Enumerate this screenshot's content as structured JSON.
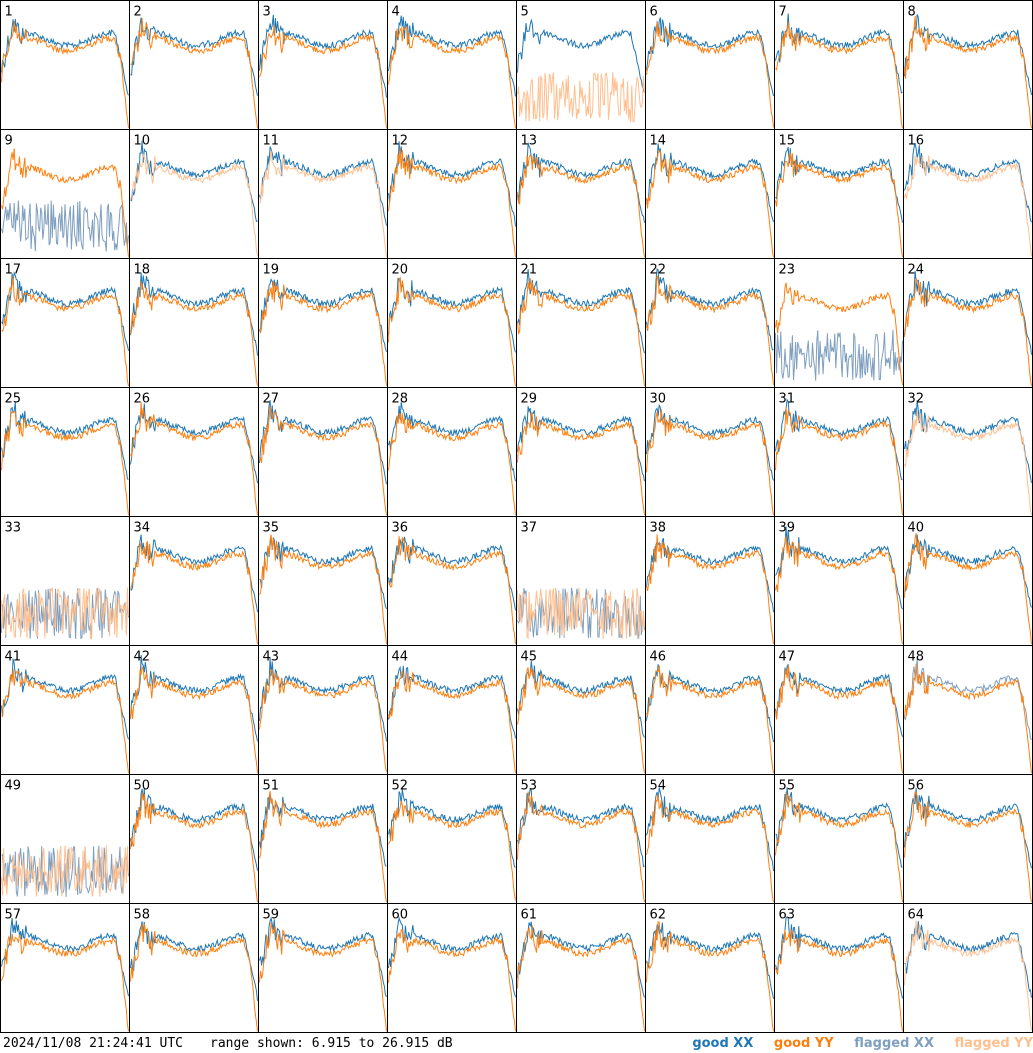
{
  "footer": {
    "timestamp": "2024/11/08 21:24:41 UTC",
    "range_text": "range shown: 6.915 to 26.915 dB"
  },
  "legend": {
    "good_xx": "good XX",
    "good_yy": "good YY",
    "flagged_xx": "flagged XX",
    "flagged_yy": "flagged YY"
  },
  "colors": {
    "good_xx": "#1f77b4",
    "good_yy": "#ff7f0e",
    "flagged_xx": "#7f9fbf",
    "flagged_yy": "#ffbf8f"
  },
  "chart_data": {
    "type": "line",
    "ylim": [
      6.915,
      26.915
    ],
    "yunit": "dB",
    "panels": [
      {
        "label": "1",
        "xx": "good",
        "yy": "good"
      },
      {
        "label": "2",
        "xx": "good",
        "yy": "good"
      },
      {
        "label": "3",
        "xx": "good",
        "yy": "good"
      },
      {
        "label": "4",
        "xx": "good",
        "yy": "good"
      },
      {
        "label": "5",
        "xx": "good",
        "yy": "flagged"
      },
      {
        "label": "6",
        "xx": "good",
        "yy": "good"
      },
      {
        "label": "7",
        "xx": "good",
        "yy": "good"
      },
      {
        "label": "8",
        "xx": "good",
        "yy": "good"
      },
      {
        "label": "9",
        "xx": "flagged",
        "yy": "good"
      },
      {
        "label": "10",
        "xx": "good",
        "yy": "flagged"
      },
      {
        "label": "11",
        "xx": "good",
        "yy": "flagged"
      },
      {
        "label": "12",
        "xx": "good",
        "yy": "good"
      },
      {
        "label": "13",
        "xx": "good",
        "yy": "good"
      },
      {
        "label": "14",
        "xx": "good",
        "yy": "good"
      },
      {
        "label": "15",
        "xx": "good",
        "yy": "good"
      },
      {
        "label": "16",
        "xx": "good",
        "yy": "flagged"
      },
      {
        "label": "17",
        "xx": "good",
        "yy": "good"
      },
      {
        "label": "18",
        "xx": "good",
        "yy": "good"
      },
      {
        "label": "19",
        "xx": "good",
        "yy": "good"
      },
      {
        "label": "20",
        "xx": "good",
        "yy": "good"
      },
      {
        "label": "21",
        "xx": "good",
        "yy": "good"
      },
      {
        "label": "22",
        "xx": "good",
        "yy": "good"
      },
      {
        "label": "23",
        "xx": "flagged",
        "yy": "good"
      },
      {
        "label": "24",
        "xx": "good",
        "yy": "good"
      },
      {
        "label": "25",
        "xx": "good",
        "yy": "good"
      },
      {
        "label": "26",
        "xx": "good",
        "yy": "good"
      },
      {
        "label": "27",
        "xx": "good",
        "yy": "good"
      },
      {
        "label": "28",
        "xx": "good",
        "yy": "good"
      },
      {
        "label": "29",
        "xx": "good",
        "yy": "good"
      },
      {
        "label": "30",
        "xx": "good",
        "yy": "good"
      },
      {
        "label": "31",
        "xx": "good",
        "yy": "good"
      },
      {
        "label": "32",
        "xx": "good",
        "yy": "flagged"
      },
      {
        "label": "33",
        "xx": "flagged",
        "yy": "flagged"
      },
      {
        "label": "34",
        "xx": "good",
        "yy": "good"
      },
      {
        "label": "35",
        "xx": "good",
        "yy": "good"
      },
      {
        "label": "36",
        "xx": "good",
        "yy": "good"
      },
      {
        "label": "37",
        "xx": "flagged",
        "yy": "flagged"
      },
      {
        "label": "38",
        "xx": "good",
        "yy": "good"
      },
      {
        "label": "39",
        "xx": "good",
        "yy": "good"
      },
      {
        "label": "40",
        "xx": "good",
        "yy": "good"
      },
      {
        "label": "41",
        "xx": "good",
        "yy": "good"
      },
      {
        "label": "42",
        "xx": "good",
        "yy": "good"
      },
      {
        "label": "43",
        "xx": "good",
        "yy": "good"
      },
      {
        "label": "44",
        "xx": "good",
        "yy": "good"
      },
      {
        "label": "45",
        "xx": "good",
        "yy": "good"
      },
      {
        "label": "46",
        "xx": "good",
        "yy": "good"
      },
      {
        "label": "47",
        "xx": "good",
        "yy": "good"
      },
      {
        "label": "48",
        "xx": "flagged",
        "yy": "good"
      },
      {
        "label": "49",
        "xx": "flagged",
        "yy": "flagged"
      },
      {
        "label": "50",
        "xx": "good",
        "yy": "good"
      },
      {
        "label": "51",
        "xx": "good",
        "yy": "good"
      },
      {
        "label": "52",
        "xx": "good",
        "yy": "good"
      },
      {
        "label": "53",
        "xx": "good",
        "yy": "good"
      },
      {
        "label": "54",
        "xx": "good",
        "yy": "good"
      },
      {
        "label": "55",
        "xx": "good",
        "yy": "good"
      },
      {
        "label": "56",
        "xx": "good",
        "yy": "good"
      },
      {
        "label": "57",
        "xx": "good",
        "yy": "good"
      },
      {
        "label": "58",
        "xx": "good",
        "yy": "good"
      },
      {
        "label": "59",
        "xx": "good",
        "yy": "good"
      },
      {
        "label": "60",
        "xx": "good",
        "yy": "good"
      },
      {
        "label": "61",
        "xx": "good",
        "yy": "good"
      },
      {
        "label": "62",
        "xx": "good",
        "yy": "good"
      },
      {
        "label": "63",
        "xx": "good",
        "yy": "good"
      },
      {
        "label": "64",
        "xx": "good",
        "yy": "flagged"
      }
    ]
  }
}
